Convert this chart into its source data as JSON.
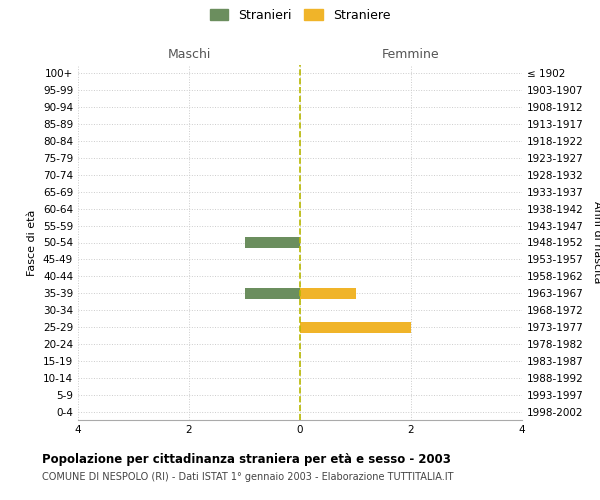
{
  "age_groups": [
    "100+",
    "95-99",
    "90-94",
    "85-89",
    "80-84",
    "75-79",
    "70-74",
    "65-69",
    "60-64",
    "55-59",
    "50-54",
    "45-49",
    "40-44",
    "35-39",
    "30-34",
    "25-29",
    "20-24",
    "15-19",
    "10-14",
    "5-9",
    "0-4"
  ],
  "birth_years": [
    "≤ 1902",
    "1903-1907",
    "1908-1912",
    "1913-1917",
    "1918-1922",
    "1923-1927",
    "1928-1932",
    "1933-1937",
    "1938-1942",
    "1943-1947",
    "1948-1952",
    "1953-1957",
    "1958-1962",
    "1963-1967",
    "1968-1972",
    "1973-1977",
    "1978-1982",
    "1983-1987",
    "1988-1992",
    "1993-1997",
    "1998-2002"
  ],
  "maschi_stranieri": [
    0,
    0,
    0,
    0,
    0,
    0,
    0,
    0,
    0,
    0,
    1,
    0,
    0,
    1,
    0,
    0,
    0,
    0,
    0,
    0,
    0
  ],
  "femmine_straniere": [
    0,
    0,
    0,
    0,
    0,
    0,
    0,
    0,
    0,
    0,
    0,
    0,
    0,
    1,
    0,
    2,
    0,
    0,
    0,
    0,
    0
  ],
  "color_maschi": "#6b8e5e",
  "color_femmine": "#f0b429",
  "xlim": 4,
  "xlabel_ticks": [
    -4,
    -2,
    0,
    2,
    4
  ],
  "xlabel_labels": [
    "4",
    "2",
    "0",
    "2",
    "4"
  ],
  "title": "Popolazione per cittadinanza straniera per età e sesso - 2003",
  "subtitle": "COMUNE DI NESPOLO (RI) - Dati ISTAT 1° gennaio 2003 - Elaborazione TUTTITALIA.IT",
  "legend_stranieri": "Stranieri",
  "legend_straniere": "Straniere",
  "ylabel_left": "Fasce di età",
  "ylabel_right": "Anni di nascita",
  "header_maschi": "Maschi",
  "header_femmine": "Femmine",
  "bar_height": 0.65,
  "background_color": "#ffffff",
  "grid_color": "#cccccc",
  "center_line_color": "#b8b800"
}
